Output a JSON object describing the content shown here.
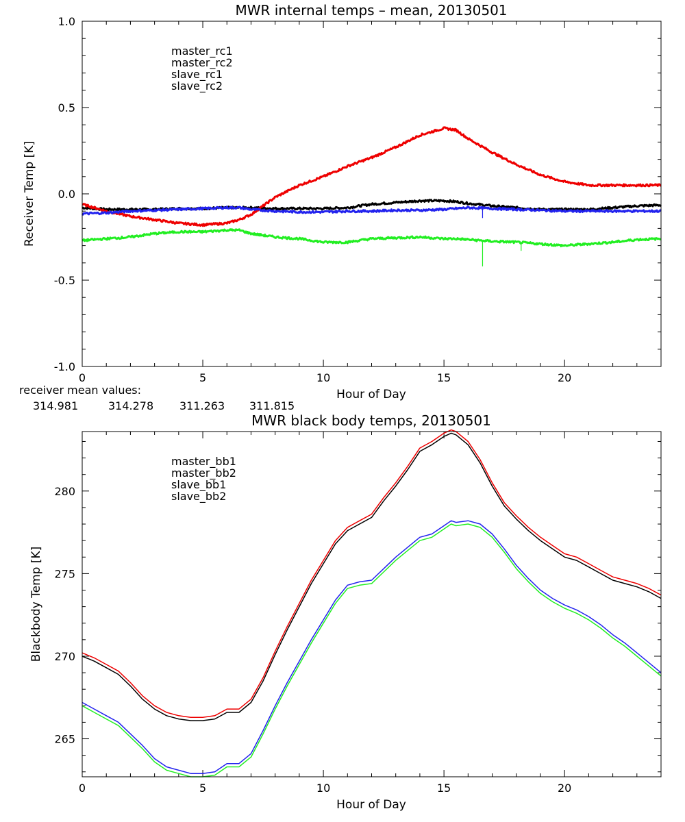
{
  "colors": {
    "master_1": "#000000",
    "master_2": "#ee0000",
    "slave_1": "#2222ee",
    "slave_2": "#22ee22"
  },
  "mean_values": {
    "caption": "receiver mean values:",
    "values": [
      "314.981",
      "314.278",
      "311.263",
      "311.815"
    ]
  },
  "chart_data": [
    {
      "type": "line",
      "title": "MWR internal temps – mean, 20130501",
      "xlabel": "Hour of Day",
      "ylabel": "Receiver Temp [K]",
      "xlim": [
        0,
        24
      ],
      "ylim": [
        -1.0,
        1.0
      ],
      "xticks": [
        "0",
        "5",
        "10",
        "15",
        "20"
      ],
      "yticks": [
        "-1.0",
        "-0.5",
        "0.0",
        "0.5",
        "1.0"
      ],
      "legend_position": "top-left",
      "x": [
        0,
        1,
        2,
        3,
        4,
        5,
        6,
        6.5,
        7,
        8,
        9,
        10,
        11,
        12,
        13,
        14,
        15,
        15.5,
        16,
        17,
        18,
        19,
        20,
        21,
        22,
        23,
        24
      ],
      "series": [
        {
          "name": "master_rc1",
          "color": "#000000",
          "values": [
            -0.08,
            -0.09,
            -0.09,
            -0.09,
            -0.085,
            -0.085,
            -0.08,
            -0.08,
            -0.08,
            -0.085,
            -0.085,
            -0.085,
            -0.08,
            -0.06,
            -0.05,
            -0.04,
            -0.04,
            -0.045,
            -0.055,
            -0.07,
            -0.08,
            -0.09,
            -0.09,
            -0.09,
            -0.08,
            -0.07,
            -0.065
          ]
        },
        {
          "name": "master_rc2",
          "color": "#ee0000",
          "values": [
            -0.06,
            -0.1,
            -0.13,
            -0.15,
            -0.17,
            -0.18,
            -0.17,
            -0.15,
            -0.12,
            -0.02,
            0.05,
            0.1,
            0.16,
            0.21,
            0.27,
            0.34,
            0.38,
            0.37,
            0.32,
            0.24,
            0.17,
            0.11,
            0.07,
            0.05,
            0.05,
            0.05,
            0.05
          ]
        },
        {
          "name": "slave_rc1",
          "color": "#2222ee",
          "values": [
            -0.115,
            -0.11,
            -0.1,
            -0.095,
            -0.09,
            -0.085,
            -0.08,
            -0.08,
            -0.09,
            -0.1,
            -0.105,
            -0.105,
            -0.1,
            -0.1,
            -0.095,
            -0.095,
            -0.09,
            -0.085,
            -0.08,
            -0.085,
            -0.09,
            -0.095,
            -0.1,
            -0.1,
            -0.1,
            -0.1,
            -0.1
          ]
        },
        {
          "name": "slave_rc2",
          "color": "#22ee22",
          "values": [
            -0.27,
            -0.26,
            -0.25,
            -0.23,
            -0.22,
            -0.22,
            -0.21,
            -0.21,
            -0.23,
            -0.25,
            -0.26,
            -0.28,
            -0.28,
            -0.26,
            -0.255,
            -0.25,
            -0.26,
            -0.26,
            -0.265,
            -0.275,
            -0.28,
            -0.29,
            -0.3,
            -0.29,
            -0.28,
            -0.265,
            -0.26
          ]
        }
      ],
      "spikes": [
        {
          "series": "slave_rc1",
          "x": 16.6,
          "y": -0.14
        },
        {
          "series": "slave_rc2",
          "x": 16.6,
          "y": -0.42
        },
        {
          "series": "slave_rc2",
          "x": 18.2,
          "y": -0.33
        }
      ]
    },
    {
      "type": "line",
      "title": "MWR black body temps, 20130501",
      "xlabel": "Hour of Day",
      "ylabel": "Blackbody Temp [K]",
      "xlim": [
        0,
        24
      ],
      "ylim": [
        262.7,
        283.6
      ],
      "xticks": [
        "0",
        "5",
        "10",
        "15",
        "20"
      ],
      "yticks": [
        "265",
        "270",
        "275",
        "280"
      ],
      "legend_position": "top-left",
      "x": [
        0,
        0.5,
        1,
        1.5,
        2,
        2.5,
        3,
        3.5,
        4,
        4.5,
        5,
        5.5,
        6,
        6.5,
        7,
        7.5,
        8,
        8.5,
        9,
        9.5,
        10,
        10.5,
        11,
        11.5,
        12,
        12.5,
        13,
        13.5,
        14,
        14.5,
        15,
        15.3,
        15.5,
        16,
        16.5,
        17,
        17.5,
        18,
        18.5,
        19,
        19.5,
        20,
        20.5,
        21,
        21.5,
        22,
        22.5,
        23,
        23.5,
        24
      ],
      "series": [
        {
          "name": "master_bb1",
          "color": "#000000",
          "values": [
            270.0,
            269.7,
            269.3,
            268.9,
            268.2,
            267.4,
            266.8,
            266.4,
            266.2,
            266.1,
            266.1,
            266.2,
            266.6,
            266.6,
            267.2,
            268.5,
            270.1,
            271.6,
            273.0,
            274.4,
            275.6,
            276.8,
            277.6,
            278.0,
            278.4,
            279.4,
            280.3,
            281.3,
            282.4,
            282.8,
            283.3,
            283.5,
            283.4,
            282.8,
            281.7,
            280.3,
            279.1,
            278.3,
            277.6,
            277.0,
            276.5,
            276.0,
            275.8,
            275.4,
            275.0,
            274.6,
            274.4,
            274.2,
            273.9,
            273.5
          ]
        },
        {
          "name": "master_bb2",
          "color": "#ee0000",
          "values": [
            270.2,
            269.9,
            269.5,
            269.1,
            268.4,
            267.6,
            267.0,
            266.6,
            266.4,
            266.3,
            266.3,
            266.4,
            266.8,
            266.8,
            267.4,
            268.7,
            270.3,
            271.8,
            273.2,
            274.6,
            275.8,
            277.0,
            277.8,
            278.2,
            278.6,
            279.6,
            280.5,
            281.5,
            282.6,
            283.0,
            283.5,
            283.7,
            283.6,
            283.0,
            281.9,
            280.5,
            279.3,
            278.5,
            277.8,
            277.2,
            276.7,
            276.2,
            276.0,
            275.6,
            275.2,
            274.8,
            274.6,
            274.4,
            274.1,
            273.7
          ]
        },
        {
          "name": "slave_bb1",
          "color": "#2222ee",
          "values": [
            267.2,
            266.8,
            266.4,
            266.0,
            265.3,
            264.6,
            263.8,
            263.3,
            263.1,
            262.9,
            262.9,
            263.0,
            263.5,
            263.5,
            264.1,
            265.5,
            267.0,
            268.4,
            269.7,
            271.0,
            272.2,
            273.4,
            274.3,
            274.5,
            274.6,
            275.3,
            276.0,
            276.6,
            277.2,
            277.4,
            277.9,
            278.2,
            278.1,
            278.2,
            278.0,
            277.4,
            276.5,
            275.5,
            274.7,
            274.0,
            273.5,
            273.1,
            272.8,
            272.4,
            271.9,
            271.3,
            270.8,
            270.2,
            269.6,
            269.0
          ]
        },
        {
          "name": "slave_bb2",
          "color": "#22ee22",
          "values": [
            267.0,
            266.6,
            266.2,
            265.8,
            265.1,
            264.4,
            263.6,
            263.1,
            262.9,
            262.7,
            262.7,
            262.8,
            263.3,
            263.3,
            263.9,
            265.3,
            266.8,
            268.2,
            269.5,
            270.8,
            272.0,
            273.2,
            274.1,
            274.3,
            274.4,
            275.1,
            275.8,
            276.4,
            277.0,
            277.2,
            277.7,
            278.0,
            277.9,
            278.0,
            277.8,
            277.2,
            276.3,
            275.3,
            274.5,
            273.8,
            273.3,
            272.9,
            272.6,
            272.2,
            271.7,
            271.1,
            270.6,
            270.0,
            269.4,
            268.8
          ]
        }
      ]
    }
  ]
}
